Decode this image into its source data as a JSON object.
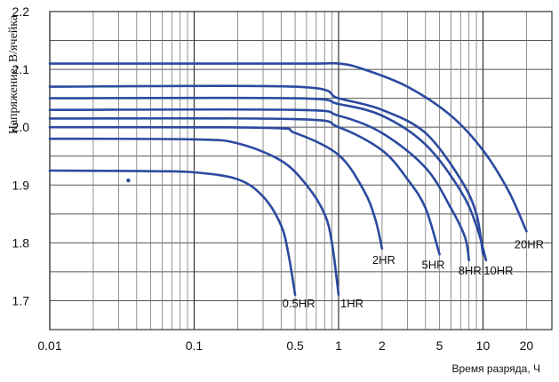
{
  "chart_data": {
    "type": "line",
    "title": "",
    "xlabel": "Время разряда, Ч",
    "ylabel": "Напряжение, В/ячейка",
    "x_scale": "log",
    "xlim": [
      0.01,
      30
    ],
    "ylim": [
      1.65,
      2.2
    ],
    "grid": true,
    "x_ticks": [
      0.01,
      0.1,
      0.5,
      1,
      2,
      5,
      10,
      20
    ],
    "x_tick_labels": [
      "0.01",
      "0.1",
      "0.5",
      "1",
      "2",
      "5",
      "10",
      "20"
    ],
    "y_ticks": [
      1.7,
      1.8,
      1.9,
      2.0,
      2.1,
      2.2
    ],
    "y_tick_labels": [
      "1.7",
      "1.8",
      "1.9",
      "2.0",
      "2.1",
      "2.2"
    ],
    "line_color": "#2b4aa0",
    "series": [
      {
        "name": "0.5HR",
        "points": [
          [
            0.01,
            1.925
          ],
          [
            0.05,
            1.924
          ],
          [
            0.1,
            1.922
          ],
          [
            0.2,
            1.91
          ],
          [
            0.3,
            1.88
          ],
          [
            0.4,
            1.83
          ],
          [
            0.45,
            1.78
          ],
          [
            0.5,
            1.71
          ]
        ]
      },
      {
        "name": "1HR",
        "points": [
          [
            0.01,
            1.98
          ],
          [
            0.1,
            1.979
          ],
          [
            0.2,
            1.972
          ],
          [
            0.4,
            1.942
          ],
          [
            0.6,
            1.9
          ],
          [
            0.8,
            1.85
          ],
          [
            0.9,
            1.8
          ],
          [
            1.0,
            1.71
          ]
        ]
      },
      {
        "name": "2HR",
        "points": [
          [
            0.01,
            2.0
          ],
          [
            0.3,
            1.999
          ],
          [
            0.5,
            1.99
          ],
          [
            1.0,
            1.952
          ],
          [
            1.5,
            1.89
          ],
          [
            1.8,
            1.84
          ],
          [
            2.0,
            1.79
          ]
        ]
      },
      {
        "name": "5HR",
        "points": [
          [
            0.01,
            2.015
          ],
          [
            0.5,
            2.014
          ],
          [
            1.0,
            2.0
          ],
          [
            2.0,
            1.96
          ],
          [
            3.0,
            1.91
          ],
          [
            4.0,
            1.86
          ],
          [
            5.0,
            1.78
          ]
        ]
      },
      {
        "name": "8HR",
        "points": [
          [
            0.01,
            2.03
          ],
          [
            0.5,
            2.03
          ],
          [
            1.0,
            2.02
          ],
          [
            2.0,
            1.99
          ],
          [
            4.0,
            1.93
          ],
          [
            6.0,
            1.86
          ],
          [
            7.5,
            1.81
          ],
          [
            8.0,
            1.77
          ]
        ]
      },
      {
        "name": "10HR",
        "points": [
          [
            0.01,
            2.05
          ],
          [
            0.5,
            2.05
          ],
          [
            1.0,
            2.04
          ],
          [
            2.0,
            2.02
          ],
          [
            4.0,
            1.97
          ],
          [
            7.0,
            1.89
          ],
          [
            9.0,
            1.83
          ],
          [
            10.5,
            1.77
          ]
        ]
      },
      {
        "name": "",
        "points": [
          [
            0.01,
            2.07
          ],
          [
            0.5,
            2.07
          ],
          [
            1.0,
            2.05
          ],
          [
            2.0,
            2.03
          ],
          [
            4.0,
            1.99
          ],
          [
            7.0,
            1.91
          ],
          [
            9.0,
            1.85
          ],
          [
            10.0,
            1.78
          ]
        ]
      },
      {
        "name": "20HR",
        "points": [
          [
            0.01,
            2.11
          ],
          [
            0.5,
            2.11
          ],
          [
            1.0,
            2.11
          ],
          [
            1.5,
            2.1
          ],
          [
            3.0,
            2.07
          ],
          [
            6.0,
            2.02
          ],
          [
            10.0,
            1.96
          ],
          [
            15.0,
            1.89
          ],
          [
            20.0,
            1.82
          ]
        ]
      }
    ],
    "markers": [
      {
        "x": 0.035,
        "y": 1.908
      }
    ]
  }
}
